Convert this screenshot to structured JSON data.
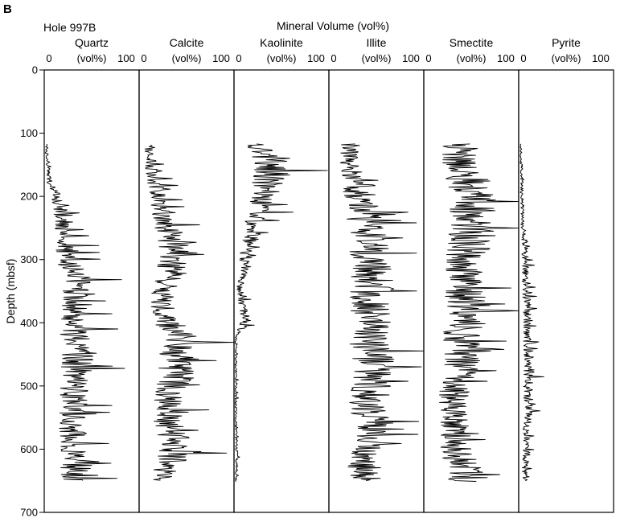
{
  "figure": {
    "panel_label": "B",
    "hole_label": "Hole 997B",
    "supertitle": "Mineral Volume (vol%)"
  },
  "chart_data": {
    "type": "line",
    "orientation": "depth-vertical",
    "ylabel": "Depth (mbsf)",
    "ylim": [
      0,
      700
    ],
    "y_ticks": [
      0,
      100,
      200,
      300,
      400,
      500,
      600,
      700
    ],
    "x_ticks": [
      0,
      100
    ],
    "x_unit_label": "(vol%)",
    "grid": false,
    "panels": [
      {
        "name": "Quartz",
        "xlim": [
          0,
          100
        ],
        "depth_start": 117,
        "depth_end": 650,
        "profile": [
          [
            117,
            3
          ],
          [
            130,
            2
          ],
          [
            180,
            6
          ],
          [
            220,
            20
          ],
          [
            260,
            20
          ],
          [
            300,
            27
          ],
          [
            350,
            37
          ],
          [
            390,
            31
          ],
          [
            430,
            33
          ],
          [
            470,
            36
          ],
          [
            520,
            30
          ],
          [
            560,
            31
          ],
          [
            600,
            30
          ],
          [
            630,
            35
          ],
          [
            650,
            30
          ]
        ]
      },
      {
        "name": "Calcite",
        "xlim": [
          0,
          100
        ],
        "depth_start": 119,
        "depth_end": 650,
        "profile": [
          [
            119,
            12
          ],
          [
            150,
            12
          ],
          [
            200,
            20
          ],
          [
            250,
            32
          ],
          [
            280,
            38
          ],
          [
            320,
            34
          ],
          [
            350,
            24
          ],
          [
            390,
            26
          ],
          [
            430,
            44
          ],
          [
            470,
            42
          ],
          [
            520,
            32
          ],
          [
            560,
            30
          ],
          [
            600,
            40
          ],
          [
            630,
            30
          ],
          [
            650,
            20
          ]
        ]
      },
      {
        "name": "Kaolinite",
        "xlim": [
          0,
          100
        ],
        "depth_start": 117,
        "depth_end": 652,
        "profile": [
          [
            117,
            22
          ],
          [
            140,
            40
          ],
          [
            170,
            40
          ],
          [
            200,
            30
          ],
          [
            230,
            24
          ],
          [
            260,
            20
          ],
          [
            290,
            12
          ],
          [
            320,
            10
          ],
          [
            350,
            5
          ],
          [
            380,
            10
          ],
          [
            400,
            12
          ],
          [
            420,
            2
          ],
          [
            500,
            2
          ],
          [
            560,
            2
          ],
          [
            620,
            3
          ],
          [
            652,
            2
          ]
        ]
      },
      {
        "name": "Illite",
        "xlim": [
          0,
          100
        ],
        "depth_start": 117,
        "depth_end": 650,
        "profile": [
          [
            117,
            24
          ],
          [
            140,
            22
          ],
          [
            180,
            24
          ],
          [
            220,
            36
          ],
          [
            260,
            40
          ],
          [
            300,
            44
          ],
          [
            340,
            46
          ],
          [
            380,
            44
          ],
          [
            420,
            43
          ],
          [
            460,
            46
          ],
          [
            500,
            44
          ],
          [
            540,
            42
          ],
          [
            580,
            42
          ],
          [
            620,
            36
          ],
          [
            650,
            38
          ]
        ]
      },
      {
        "name": "Smectite",
        "xlim": [
          0,
          100
        ],
        "depth_start": 117,
        "depth_end": 652,
        "profile": [
          [
            117,
            40
          ],
          [
            140,
            36
          ],
          [
            180,
            48
          ],
          [
            220,
            52
          ],
          [
            260,
            52
          ],
          [
            300,
            46
          ],
          [
            340,
            42
          ],
          [
            380,
            50
          ],
          [
            420,
            40
          ],
          [
            460,
            40
          ],
          [
            500,
            34
          ],
          [
            540,
            30
          ],
          [
            580,
            34
          ],
          [
            620,
            38
          ],
          [
            652,
            48
          ]
        ]
      },
      {
        "name": "Pyrite",
        "xlim": [
          0,
          100
        ],
        "depth_start": 117,
        "depth_end": 650,
        "profile": [
          [
            117,
            2
          ],
          [
            160,
            3
          ],
          [
            240,
            4
          ],
          [
            280,
            7
          ],
          [
            330,
            7
          ],
          [
            380,
            9
          ],
          [
            420,
            8
          ],
          [
            460,
            12
          ],
          [
            500,
            10
          ],
          [
            540,
            10
          ],
          [
            580,
            8
          ],
          [
            620,
            8
          ],
          [
            650,
            6
          ]
        ]
      }
    ]
  }
}
